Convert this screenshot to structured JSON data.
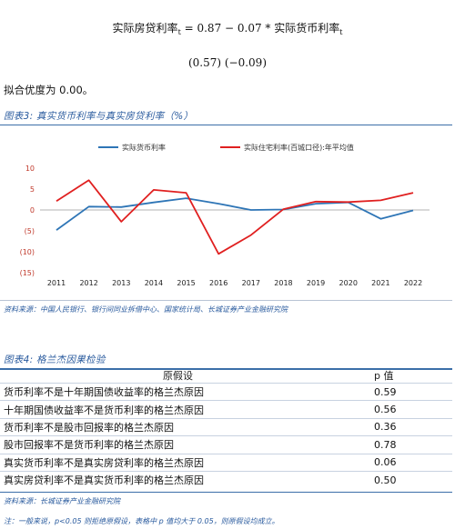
{
  "equation": {
    "lhs": "实际房贷利率",
    "lhs_sub": "t",
    "rhs_prefix": "= 0.87 − 0.07 * 实际货币利率",
    "rhs_sub": "t",
    "se": "(0.57) (−0.09)"
  },
  "fit_text": "拟合优度为 0.00。",
  "figure3": {
    "title": "图表3:  真实货币利率与真实房贷利率（%）",
    "source": "资料来源：中国人民银行、银行间同业拆借中心、国家统计局、长城证券产业金融研究院"
  },
  "chart_data": {
    "type": "line",
    "categories": [
      "2011",
      "2012",
      "2013",
      "2014",
      "2015",
      "2016",
      "2017",
      "2018",
      "2019",
      "2020",
      "2021",
      "2022"
    ],
    "series": [
      {
        "name": "实际货币利率",
        "color": "#2e75b6",
        "values": [
          -4.8,
          0.8,
          0.7,
          1.8,
          2.8,
          1.5,
          0.0,
          0.1,
          1.5,
          1.8,
          -2.1,
          -0.1
        ]
      },
      {
        "name": "实际住宅利率(百城口径):年平均值",
        "color": "#e02020",
        "values": [
          2.1,
          7.1,
          -2.8,
          4.8,
          4.1,
          -10.5,
          -6.0,
          0.2,
          2.0,
          1.9,
          2.3,
          4.1
        ]
      }
    ],
    "y_ticks": [
      "10",
      "5",
      "0",
      "(5)",
      "(10)",
      "(15)"
    ],
    "ylim": [
      -15,
      10
    ],
    "legend": "top"
  },
  "figure4": {
    "title": "图表4:  格兰杰因果检验",
    "header": {
      "hypothesis": "原假设",
      "pvalue": "p 值"
    },
    "rows": [
      {
        "hypothesis": "货币利率不是十年期国债收益率的格兰杰原因",
        "pvalue": "0.59"
      },
      {
        "hypothesis": "十年期国债收益率不是货币利率的格兰杰原因",
        "pvalue": "0.56"
      },
      {
        "hypothesis": "货币利率不是股市回报率的格兰杰原因",
        "pvalue": "0.36"
      },
      {
        "hypothesis": "股市回报率不是货币利率的格兰杰原因",
        "pvalue": "0.78"
      },
      {
        "hypothesis": "真实货币利率不是真实房贷利率的格兰杰原因",
        "pvalue": "0.06"
      },
      {
        "hypothesis": "真实房贷利率不是真实货币利率的格兰杰原因",
        "pvalue": "0.50"
      }
    ],
    "source": "资料来源：长城证券产业金融研究院"
  },
  "note": "注：一般来说，p<0.05 则拒绝原假设，表格中 p 值均大于 0.05，则原假设均成立。"
}
